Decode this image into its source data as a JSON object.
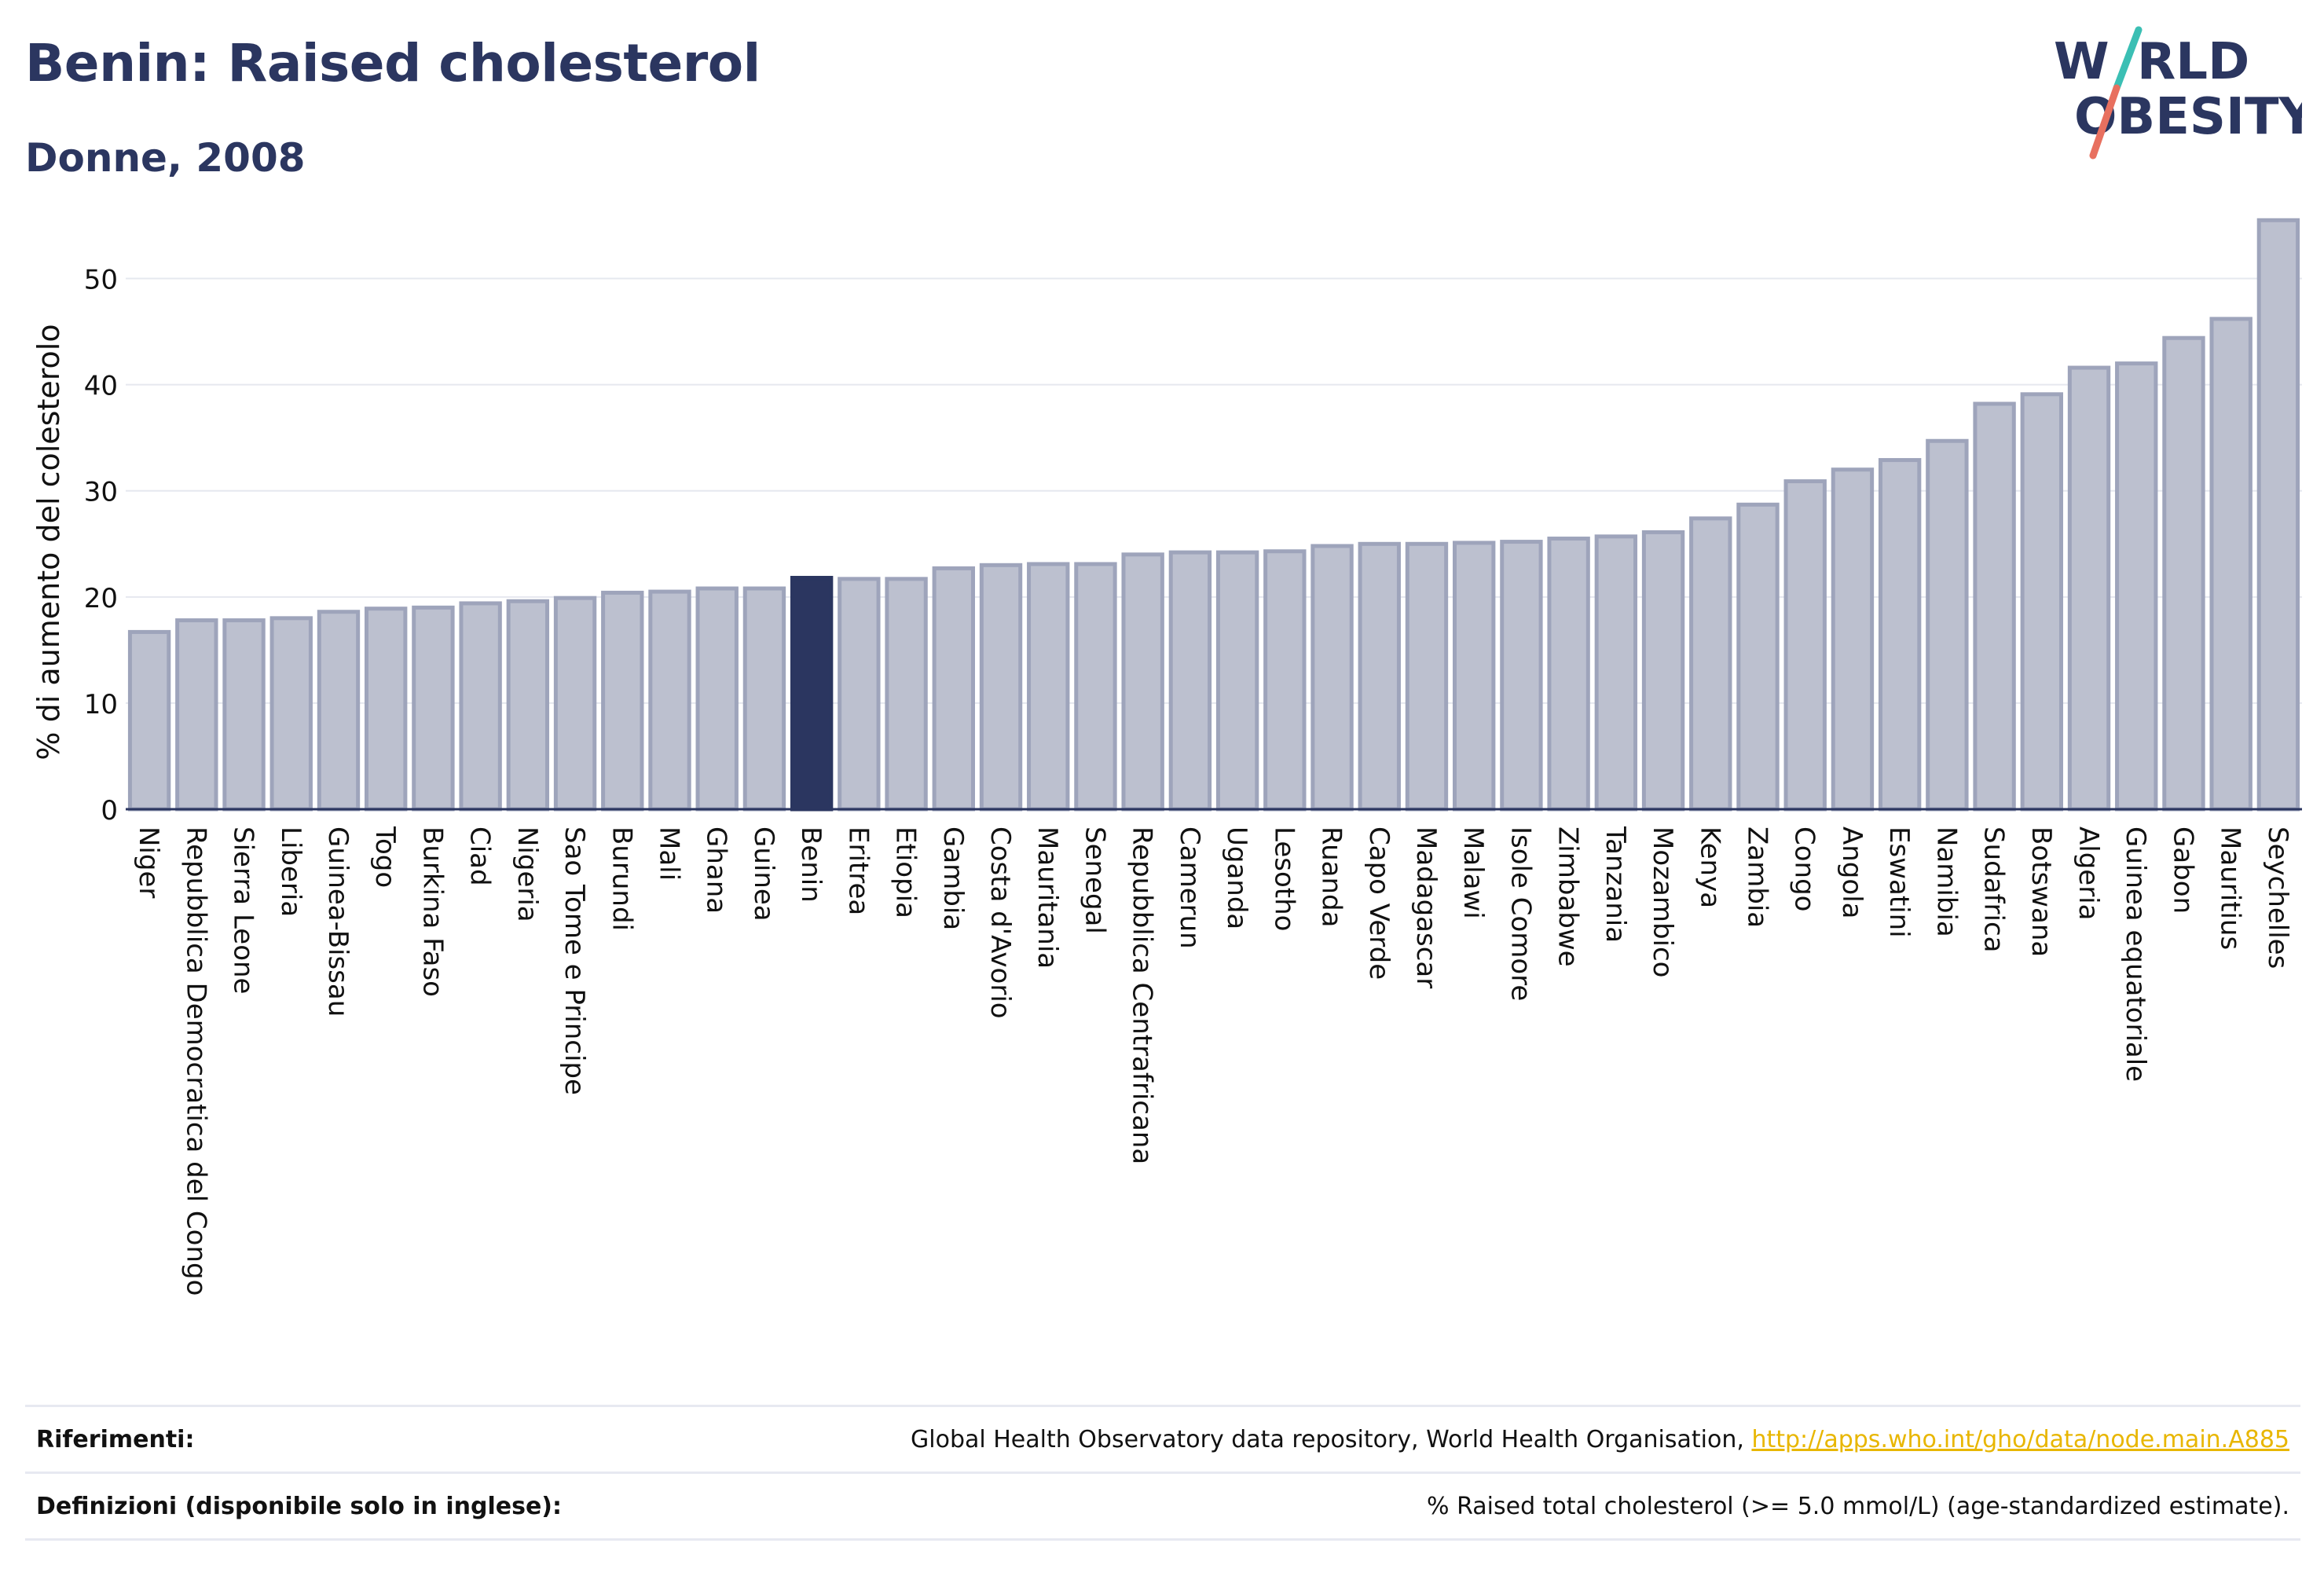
{
  "header": {
    "title": "Benin: Raised cholesterol",
    "subtitle": "Donne, 2008"
  },
  "logo": {
    "word_top": "W",
    "word_top_rest": "RLD",
    "word_bottom": "OBESITY",
    "colors": {
      "text": "#2b3660",
      "slash_teal": "#3bbfb4",
      "slash_coral": "#e8705f"
    }
  },
  "chart_data": {
    "type": "bar",
    "title": "Benin: Raised cholesterol",
    "subtitle": "Donne, 2008",
    "ylabel": "% di aumento del colesterolo",
    "xlabel": "",
    "ylim": [
      0,
      57
    ],
    "yticks": [
      0,
      10,
      20,
      30,
      40,
      50
    ],
    "grid": true,
    "highlight": "Benin",
    "colors": {
      "bar": "#bcc0cf",
      "bar_border": "#9ea4bb",
      "highlight": "#2b3660"
    },
    "categories": [
      "Niger",
      "Repubblica Democratica del Congo",
      "Sierra Leone",
      "Liberia",
      "Guinea-Bissau",
      "Togo",
      "Burkina Faso",
      "Ciad",
      "Nigeria",
      "Sao Tome e Principe",
      "Burundi",
      "Mali",
      "Ghana",
      "Guinea",
      "Benin",
      "Eritrea",
      "Etiopia",
      "Gambia",
      "Costa d'Avorio",
      "Mauritania",
      "Senegal",
      "Repubblica Centrafricana",
      "Camerun",
      "Uganda",
      "Lesotho",
      "Ruanda",
      "Capo Verde",
      "Madagascar",
      "Malawi",
      "Isole Comore",
      "Zimbabwe",
      "Tanzania",
      "Mozambico",
      "Kenya",
      "Zambia",
      "Congo",
      "Angola",
      "Eswatini",
      "Namibia",
      "Sudafrica",
      "Botswana",
      "Algeria",
      "Guinea equatoriale",
      "Gabon",
      "Mauritius",
      "Seychelles"
    ],
    "values": [
      16.7,
      17.8,
      17.8,
      18.0,
      18.6,
      18.9,
      19.0,
      19.4,
      19.6,
      19.9,
      20.4,
      20.5,
      20.8,
      20.8,
      21.8,
      21.7,
      21.7,
      22.7,
      23.0,
      23.1,
      23.1,
      24.0,
      24.2,
      24.2,
      24.3,
      24.8,
      25.0,
      25.0,
      25.1,
      25.2,
      25.5,
      25.7,
      26.1,
      27.4,
      28.7,
      30.9,
      32.0,
      32.9,
      34.7,
      38.2,
      39.1,
      41.6,
      42.0,
      44.4,
      46.2,
      55.5
    ]
  },
  "footer": {
    "references_label": "Riferimenti:",
    "references_text": "Global Health Observatory data repository, World Health Organisation, ",
    "references_link": "http://apps.who.int/gho/data/node.main.A885",
    "definitions_label": "Definizioni (disponibile solo in inglese):",
    "definitions_text": "% Raised total cholesterol (>= 5.0 mmol/L) (age-standardized estimate)."
  }
}
